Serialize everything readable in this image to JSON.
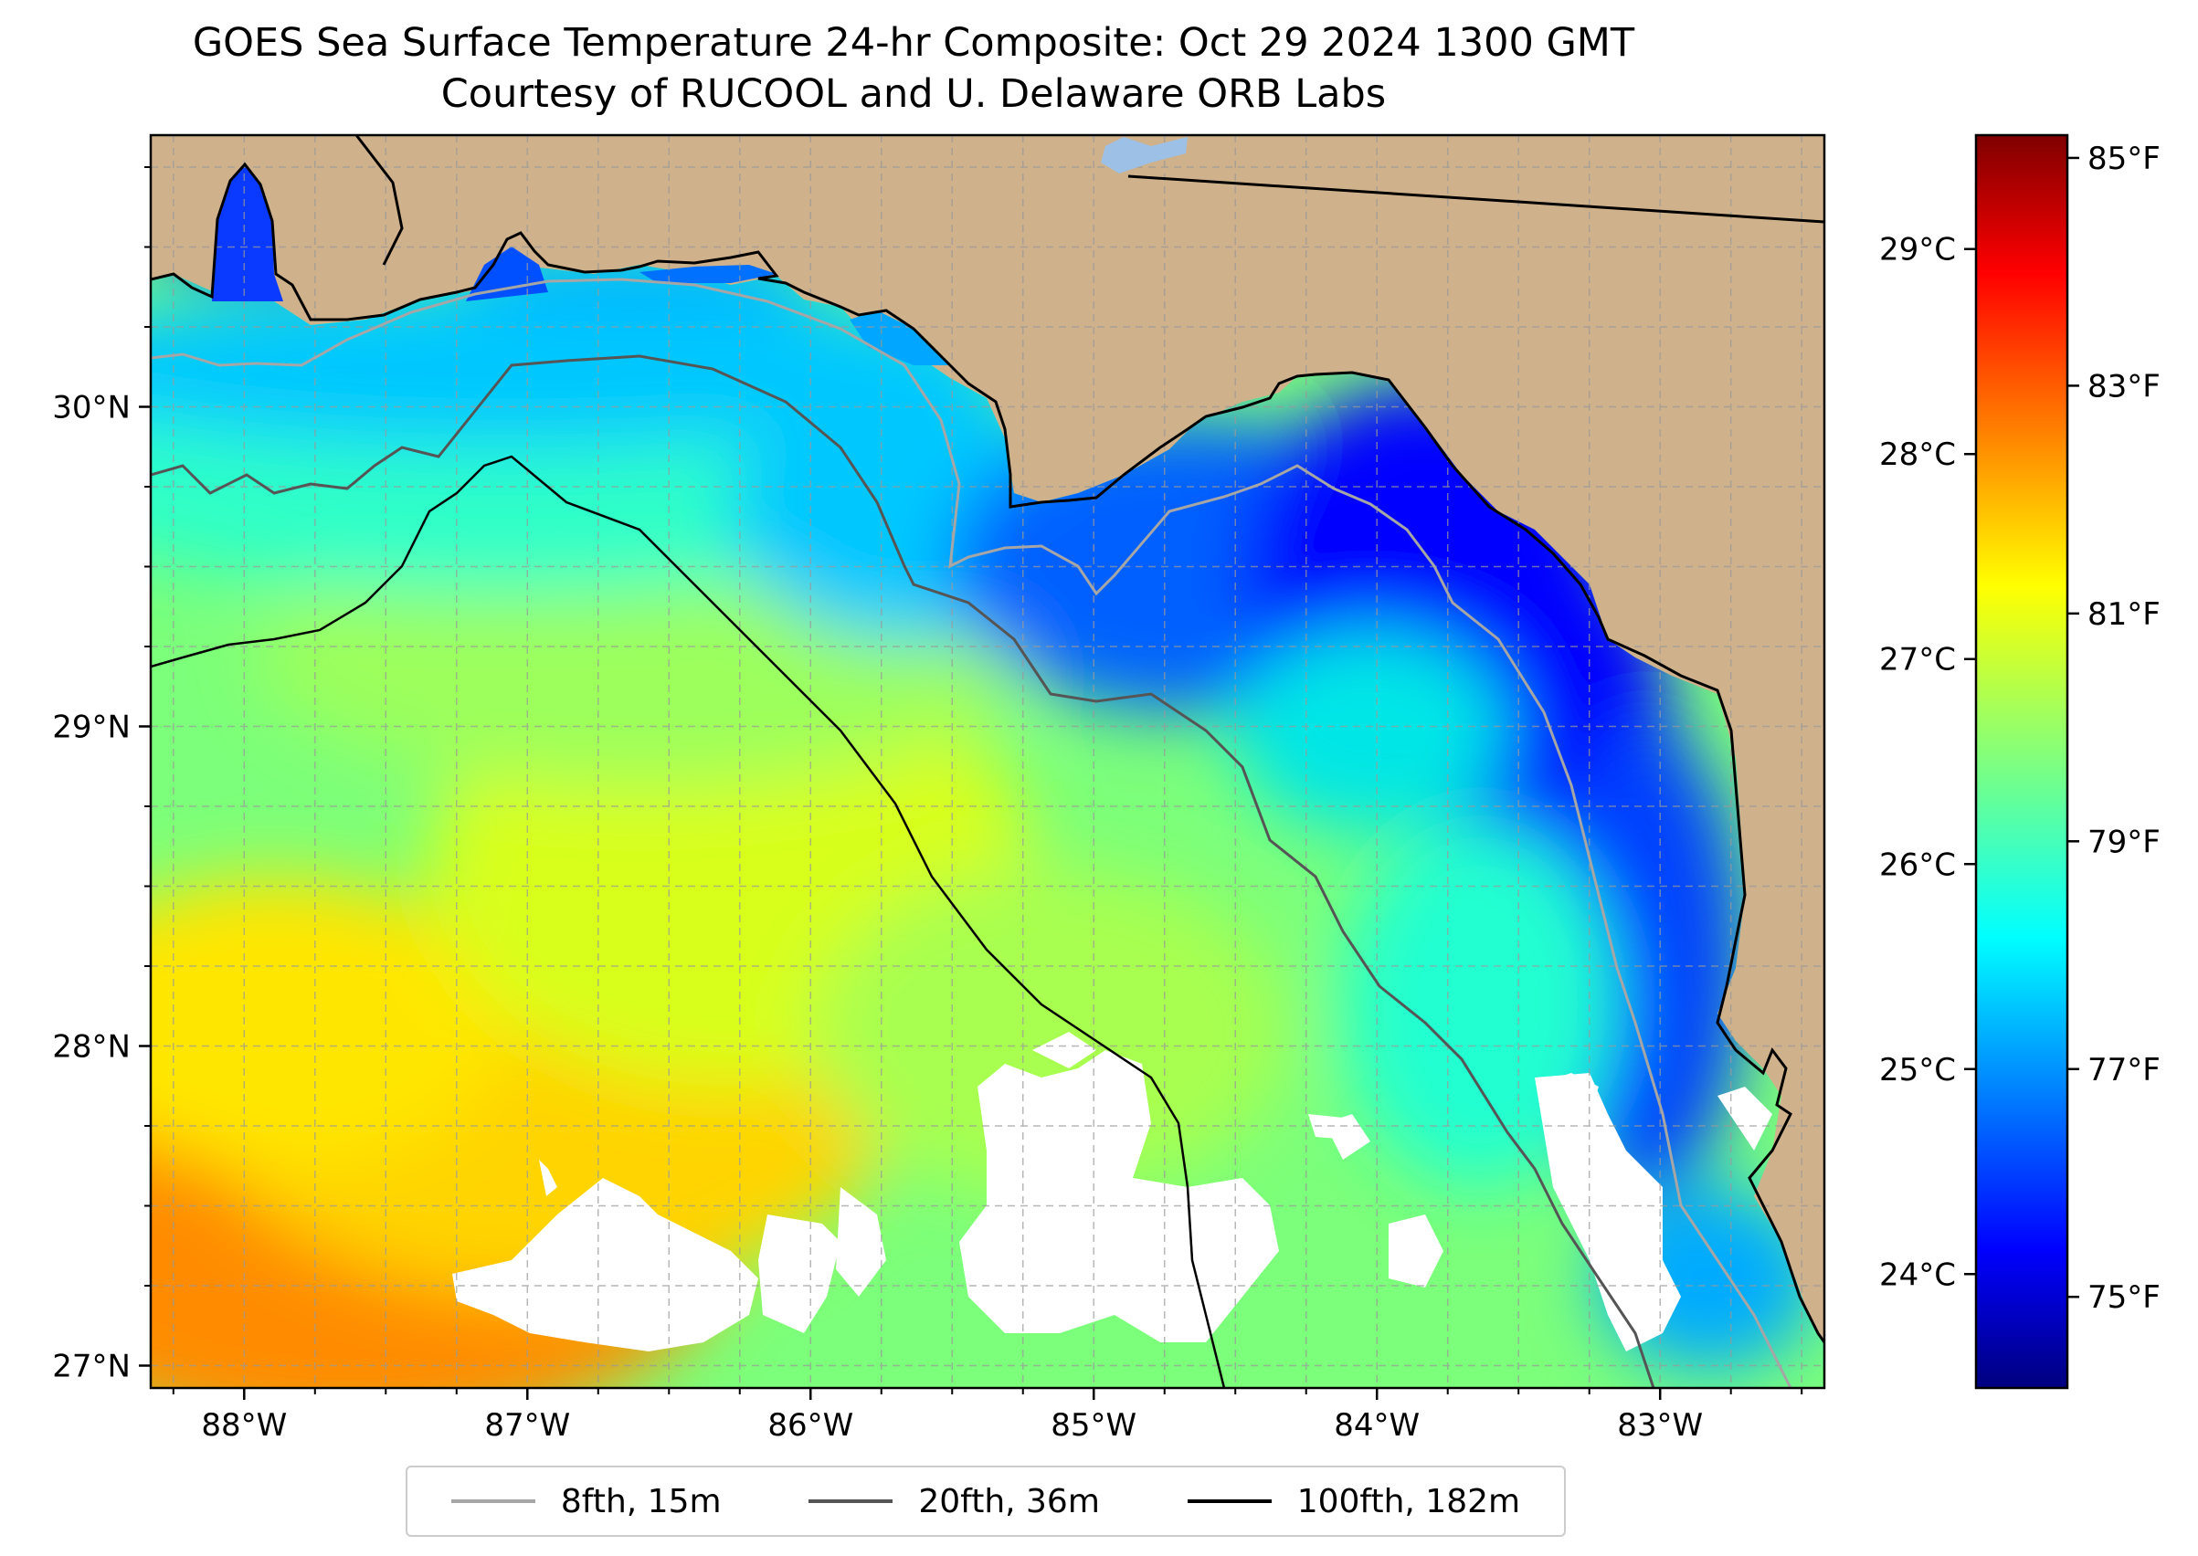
{
  "title": {
    "line1": "GOES Sea Surface Temperature 24-hr Composite: Oct 29 2024 1300 GMT",
    "line2": "Courtesy of RUCOOL and U. Delaware ORB Labs"
  },
  "map": {
    "lon_range": [
      -88.33,
      -82.42
    ],
    "lat_range": [
      26.93,
      30.85
    ],
    "lon_ticks": [
      {
        "value": -88,
        "label": "88°W"
      },
      {
        "value": -87,
        "label": "87°W"
      },
      {
        "value": -86,
        "label": "86°W"
      },
      {
        "value": -85,
        "label": "85°W"
      },
      {
        "value": -84,
        "label": "84°W"
      },
      {
        "value": -83,
        "label": "83°W"
      }
    ],
    "lat_ticks": [
      {
        "value": 27,
        "label": "27°N"
      },
      {
        "value": 28,
        "label": "28°N"
      },
      {
        "value": 29,
        "label": "29°N"
      },
      {
        "value": 30,
        "label": "30°N"
      }
    ],
    "land_color": "#cfb18b",
    "gridlines": "dashed, every 0.25°",
    "isobaths": [
      {
        "name": "8fth, 15m",
        "color": "#a6a6a6"
      },
      {
        "name": "20fth, 36m",
        "color": "#555555"
      },
      {
        "name": "100fth, 182m",
        "color": "#000000"
      }
    ]
  },
  "colorbar": {
    "colormap": "jet",
    "min_f": 74.2,
    "max_f": 85.2,
    "f_ticks": [
      {
        "value": 75,
        "label": "75°F"
      },
      {
        "value": 77,
        "label": "77°F"
      },
      {
        "value": 79,
        "label": "79°F"
      },
      {
        "value": 81,
        "label": "81°F"
      },
      {
        "value": 83,
        "label": "83°F"
      },
      {
        "value": 85,
        "label": "85°F"
      }
    ],
    "c_ticks": [
      {
        "value": 24,
        "label": "24°C"
      },
      {
        "value": 25,
        "label": "25°C"
      },
      {
        "value": 26,
        "label": "26°C"
      },
      {
        "value": 27,
        "label": "27°C"
      },
      {
        "value": 28,
        "label": "28°C"
      },
      {
        "value": 29,
        "label": "29°C"
      }
    ]
  },
  "legend": {
    "items": [
      {
        "label": "8fth, 15m",
        "color": "#a6a6a6"
      },
      {
        "label": "20fth, 36m",
        "color": "#555555"
      },
      {
        "label": "100fth, 182m",
        "color": "#000000"
      }
    ]
  }
}
